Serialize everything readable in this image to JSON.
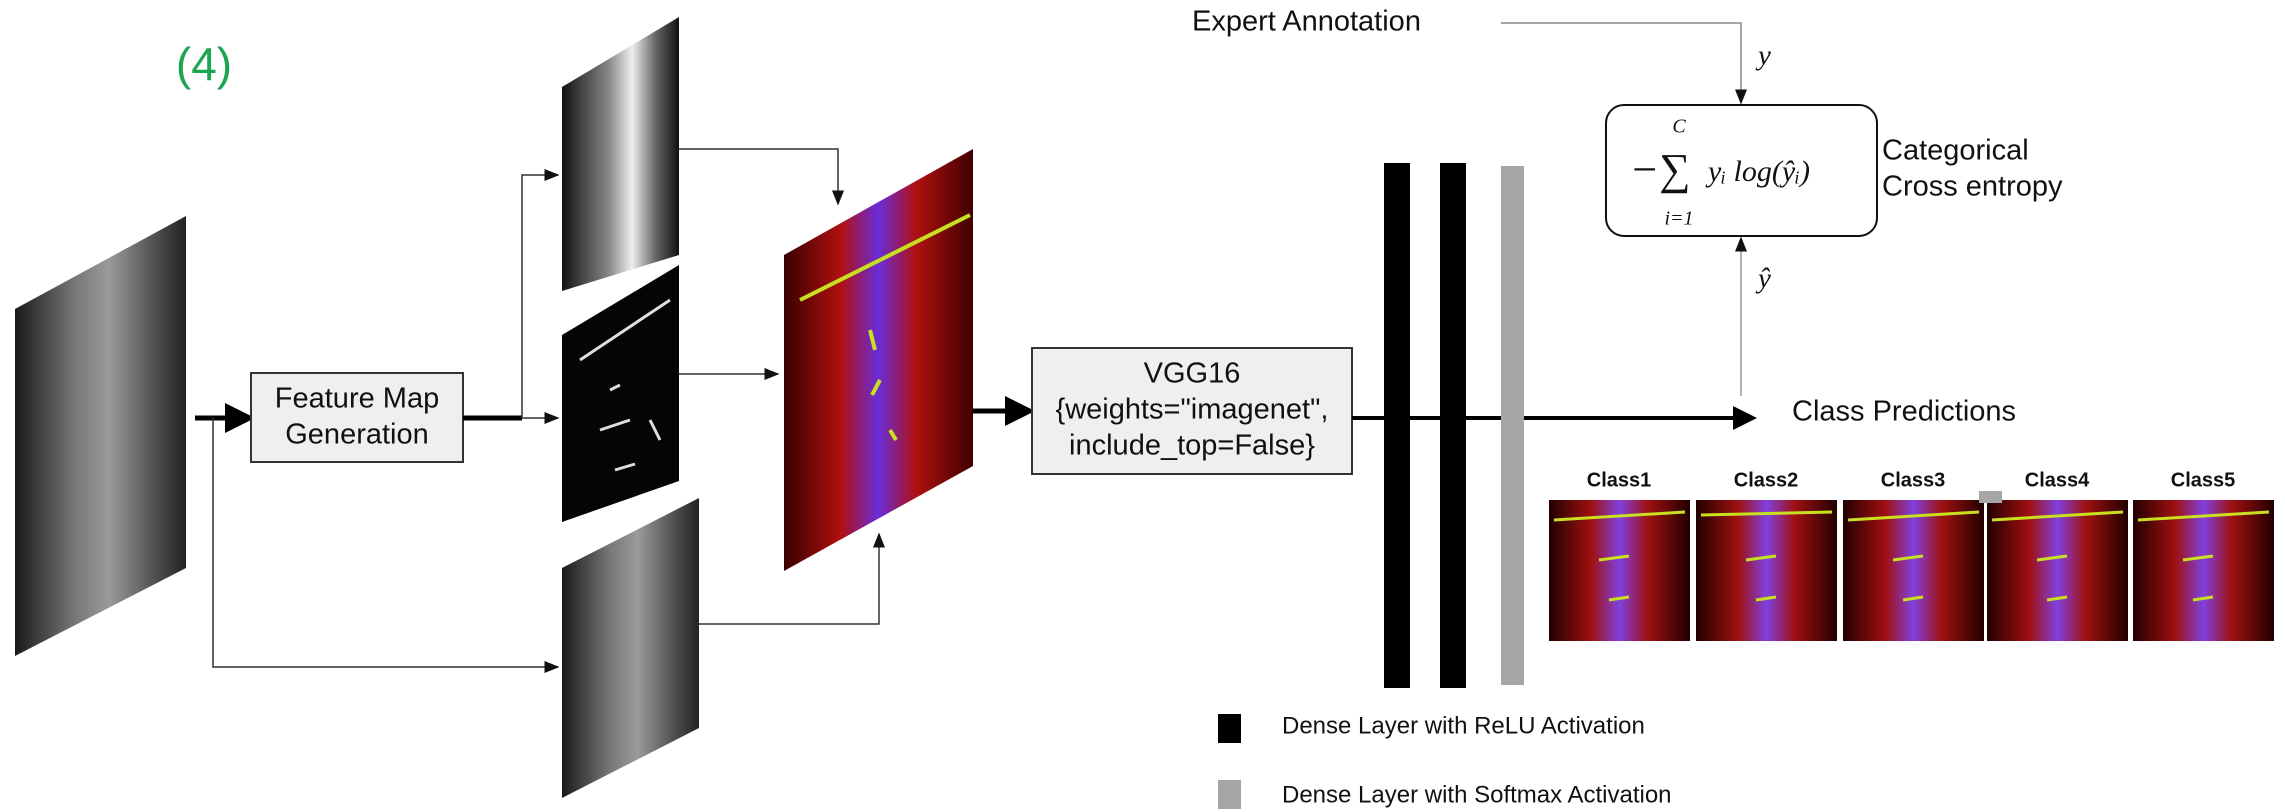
{
  "panel_label": "(4)",
  "feature_map_box": [
    "Feature Map",
    "Generation"
  ],
  "vgg_box": [
    "VGG16",
    "{weights=\"imagenet\",",
    "include_top=False}"
  ],
  "expert_annotation": "Expert Annotation",
  "y_label": "y",
  "y_hat_label": "ŷ",
  "loss": {
    "operator": "−∑",
    "upper": "C",
    "lower": "i=1",
    "expression": "yᵢ log(ŷᵢ)",
    "name": [
      "Categorical",
      "Cross entropy"
    ]
  },
  "class_predictions": "Class Predictions",
  "classes": [
    "Class1",
    "Class2",
    "Class3",
    "Class4",
    "Class5"
  ],
  "legend": [
    "Dense Layer with ReLU Activation",
    "Dense Layer with Softmax Activation"
  ]
}
